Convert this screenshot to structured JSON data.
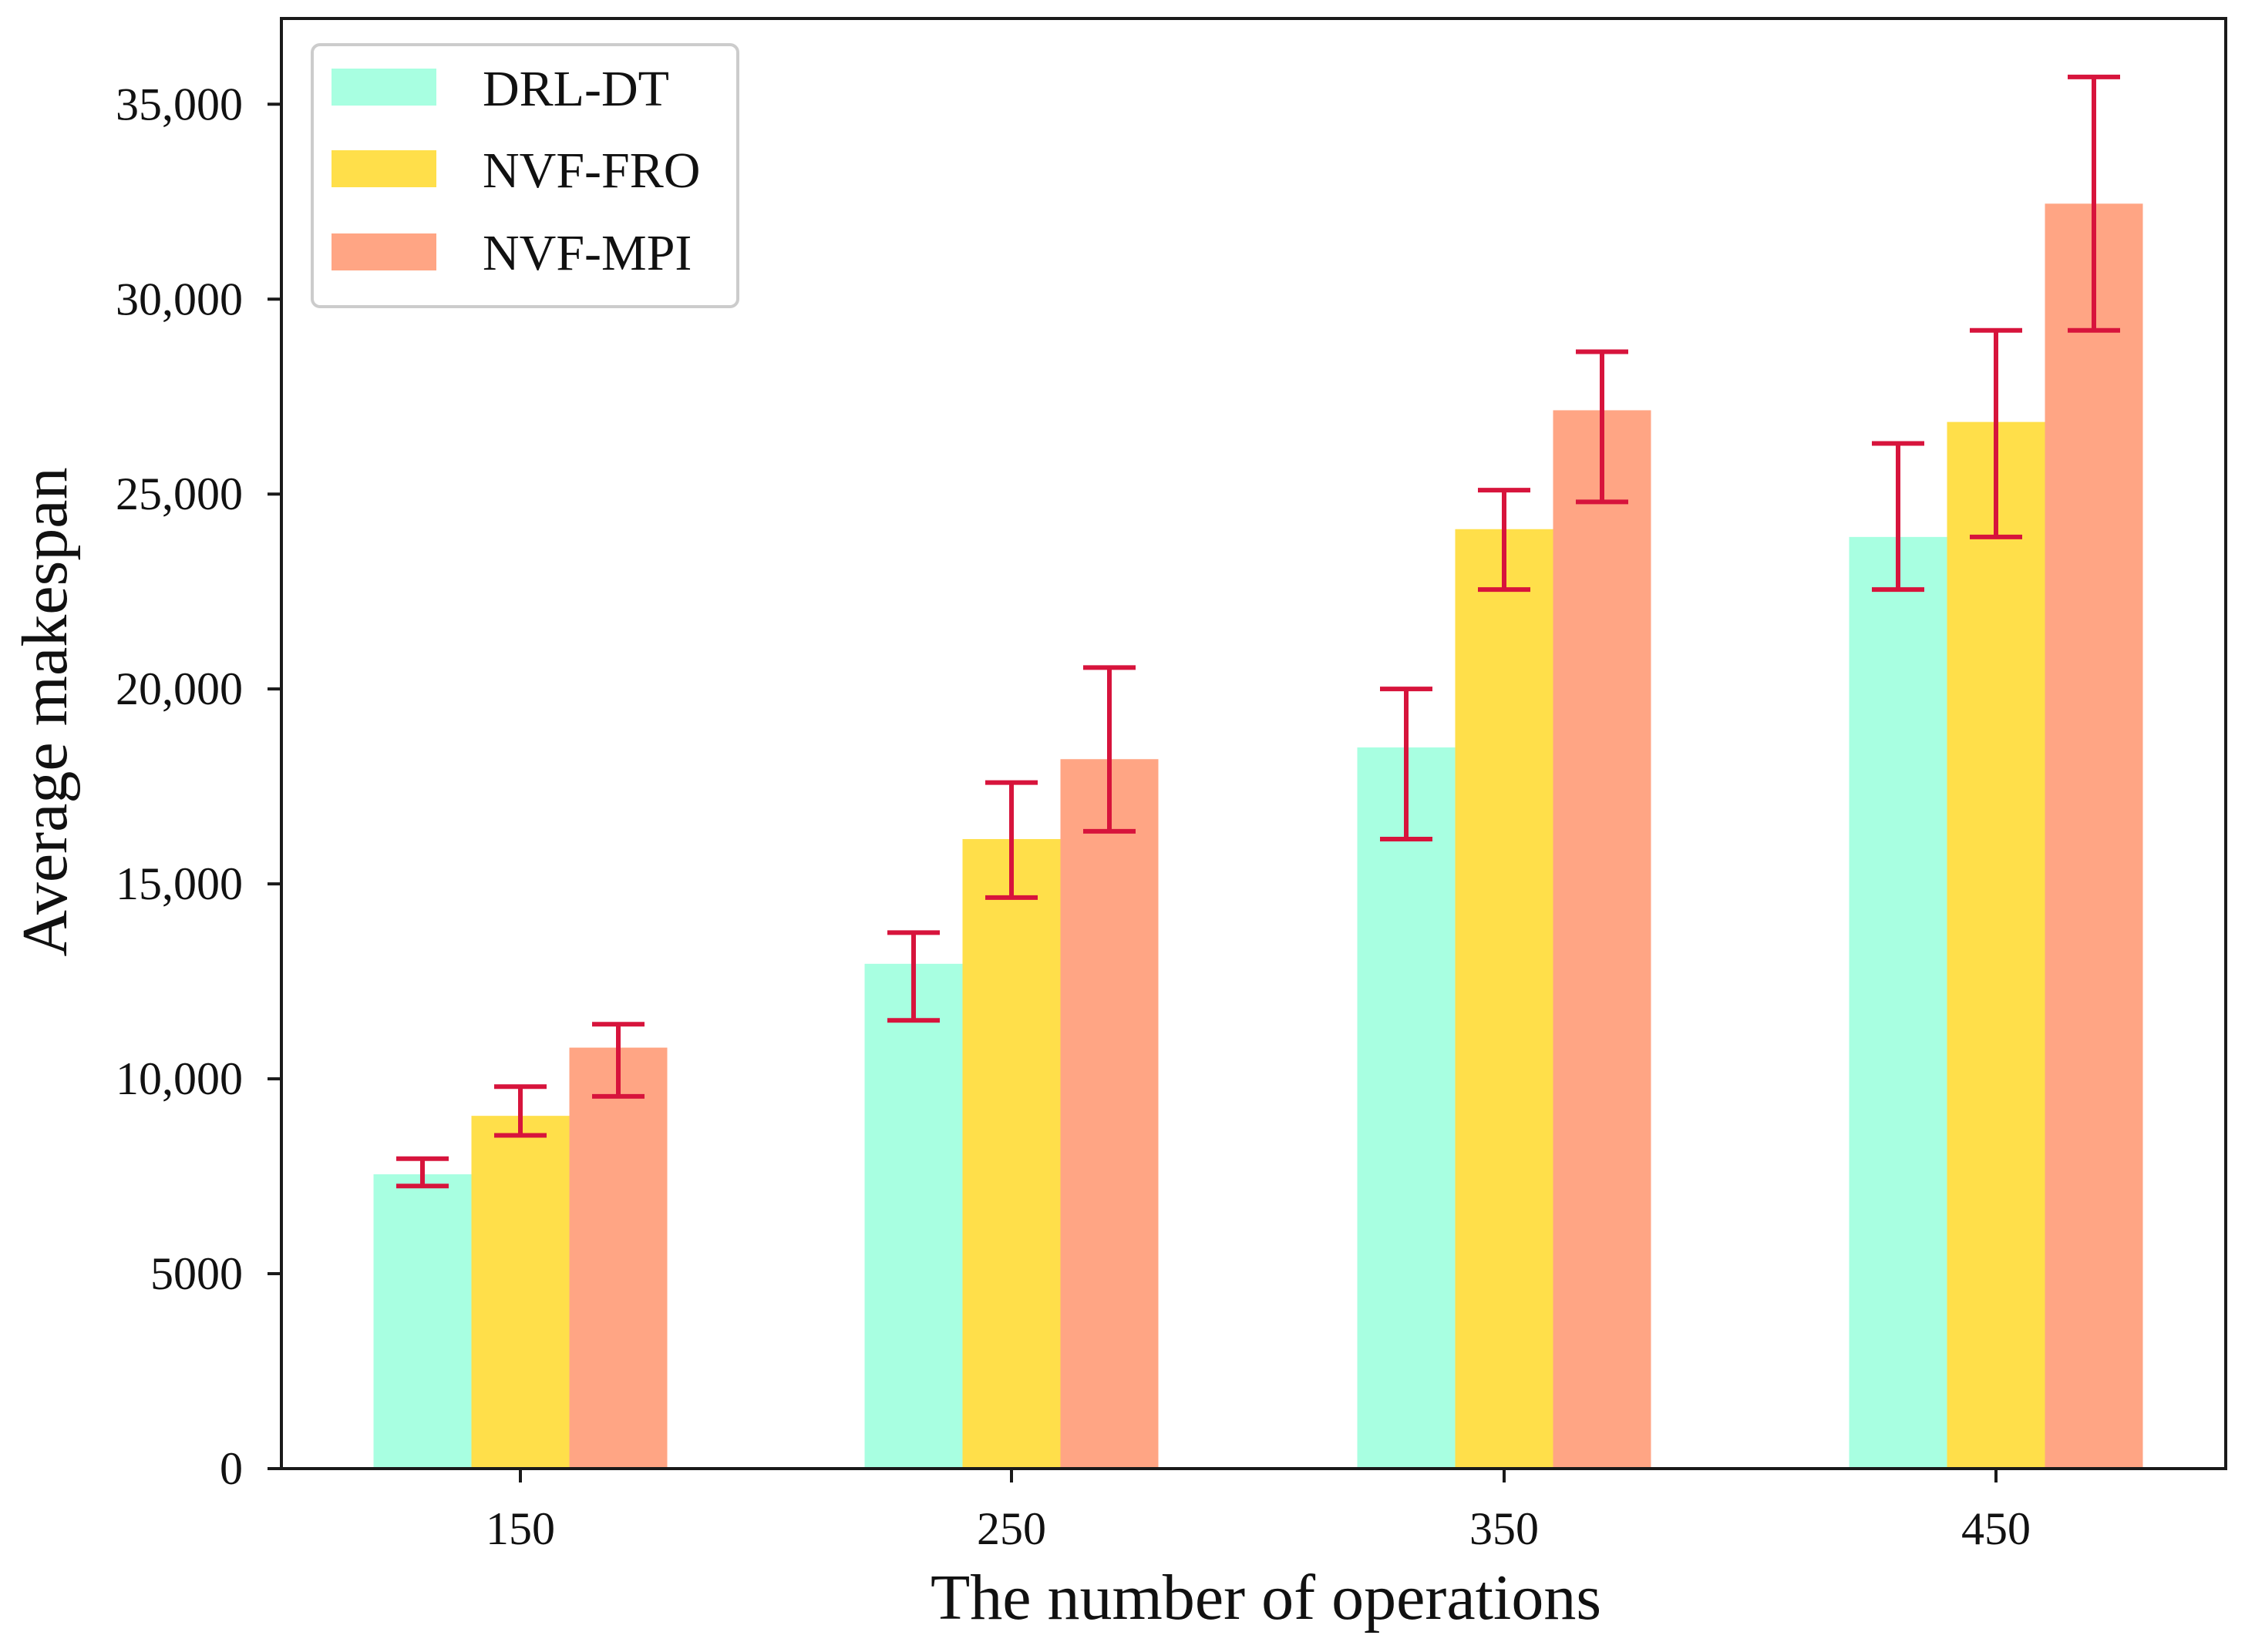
{
  "chart_data": {
    "type": "bar",
    "title": "",
    "xlabel": "The number of operations",
    "ylabel": "Average makespan",
    "categories": [
      "150",
      "250",
      "350",
      "450"
    ],
    "ylim": [
      0,
      37200
    ],
    "yticks": [
      0,
      5000,
      10000,
      15000,
      20000,
      25000,
      30000,
      35000
    ],
    "ytick_labels": [
      "0",
      "5000",
      "10,000",
      "15,000",
      "20,000",
      "25,000",
      "30,000",
      "35,000"
    ],
    "legend_position": "top-left",
    "grid": false,
    "series": [
      {
        "name": "DRL-DT",
        "color": "#a8ffe1",
        "values": [
          7550,
          12950,
          18500,
          23900
        ],
        "err_low": [
          7250,
          11500,
          16150,
          22550
        ],
        "err_high": [
          7950,
          13750,
          20000,
          26300
        ]
      },
      {
        "name": "NVF-FRO",
        "color": "#ffdf4a",
        "values": [
          9050,
          16150,
          24100,
          26850
        ],
        "err_low": [
          8550,
          14650,
          22550,
          23900
        ],
        "err_high": [
          9800,
          17600,
          25100,
          29200
        ]
      },
      {
        "name": "NVF-MPI",
        "color": "#ffa584",
        "values": [
          10800,
          18200,
          27150,
          32450
        ],
        "err_low": [
          9550,
          16350,
          24800,
          29200
        ],
        "err_high": [
          11400,
          20550,
          28650,
          35700
        ]
      }
    ],
    "error_color": "#d7143c"
  }
}
